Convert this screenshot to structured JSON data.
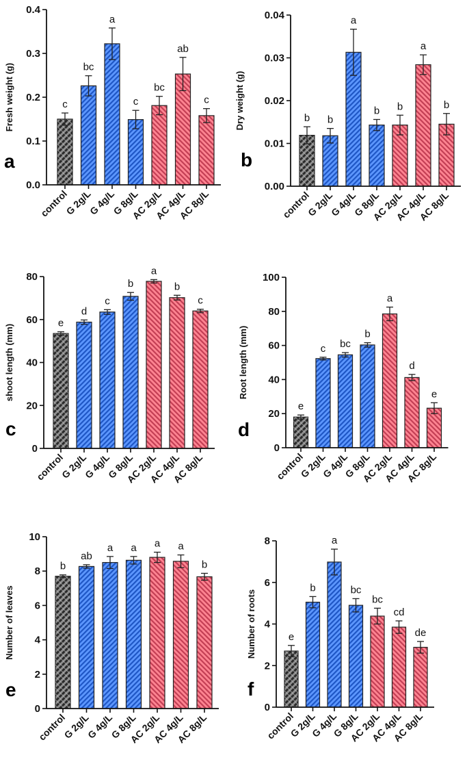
{
  "figure": {
    "categories": [
      "control",
      "G 2g/L",
      "G 4g/L",
      "G 8g/L",
      "AC 2g/L",
      "AC 4g/L",
      "AC 8g/L"
    ],
    "groups": [
      "control",
      "G",
      "G",
      "G",
      "AC",
      "AC",
      "AC"
    ],
    "colors": {
      "control": "#555555",
      "G": "#3c7be8",
      "AC": "#ee5f72",
      "control_stripe": "#1c1c1c",
      "G_stripe": "#1d4fb8",
      "AC_stripe": "#a83246",
      "G_light": "#7fb0ff",
      "AC_light": "#ff9aa5",
      "control_light": "#9a9a9a",
      "axis": "#111111"
    }
  },
  "chart_data": [
    {
      "panel": "a",
      "type": "bar",
      "title": "",
      "xlabel": "",
      "ylabel": "Fresh weight (g)",
      "ylim": [
        0,
        0.4
      ],
      "yticks": [
        0.0,
        0.1,
        0.2,
        0.3,
        0.4
      ],
      "ytick_labels": [
        "0.0",
        "0.1",
        "0.2",
        "0.3",
        "0.4"
      ],
      "categories": [
        "control",
        "G 2g/L",
        "G 4g/L",
        "G 8g/L",
        "AC 2g/L",
        "AC 4g/L",
        "AC 8g/L"
      ],
      "values": [
        0.15,
        0.226,
        0.322,
        0.149,
        0.181,
        0.253,
        0.158
      ],
      "errors": [
        0.014,
        0.023,
        0.036,
        0.021,
        0.021,
        0.038,
        0.016
      ],
      "significance": [
        "c",
        "bc",
        "a",
        "c",
        "bc",
        "ab",
        "c"
      ],
      "grid": false,
      "legend": "none"
    },
    {
      "panel": "b",
      "type": "bar",
      "title": "",
      "xlabel": "",
      "ylabel": "Dry weight (g)",
      "ylim": [
        0,
        0.04
      ],
      "yticks": [
        0.0,
        0.01,
        0.02,
        0.03,
        0.04
      ],
      "ytick_labels": [
        "0.00",
        "0.01",
        "0.02",
        "0.03",
        "0.04"
      ],
      "categories": [
        "control",
        "G 2g/L",
        "G 4g/L",
        "G 8g/L",
        "AC 2g/L",
        "AC 4g/L",
        "AC 8g/L"
      ],
      "values": [
        0.0119,
        0.0118,
        0.0313,
        0.0143,
        0.0143,
        0.0284,
        0.0145
      ],
      "errors": [
        0.002,
        0.0017,
        0.0054,
        0.0013,
        0.0023,
        0.0023,
        0.0025
      ],
      "significance": [
        "b",
        "b",
        "a",
        "b",
        "b",
        "a",
        "b"
      ],
      "grid": false,
      "legend": "none"
    },
    {
      "panel": "c",
      "type": "bar",
      "title": "",
      "xlabel": "",
      "ylabel": "shoot length (mm)",
      "ylim": [
        0,
        80
      ],
      "yticks": [
        0,
        20,
        40,
        60,
        80
      ],
      "ytick_labels": [
        "0",
        "20",
        "40",
        "60",
        "80"
      ],
      "categories": [
        "control",
        "G 2g/L",
        "G 4g/L",
        "G 8g/L",
        "AC 2g/L",
        "AC 4g/L",
        "AC 8g/L"
      ],
      "values": [
        53.5,
        58.8,
        63.5,
        70.8,
        77.8,
        70.2,
        64.0
      ],
      "errors": [
        0.8,
        1.0,
        1.1,
        1.8,
        0.8,
        1.1,
        0.8
      ],
      "significance": [
        "e",
        "d",
        "c",
        "b",
        "a",
        "b",
        "c"
      ],
      "grid": false,
      "legend": "none"
    },
    {
      "panel": "d",
      "type": "bar",
      "title": "",
      "xlabel": "",
      "ylabel": "Root length (mm)",
      "ylim": [
        0,
        100
      ],
      "yticks": [
        0,
        20,
        40,
        60,
        80,
        100
      ],
      "ytick_labels": [
        "0",
        "20",
        "40",
        "60",
        "80",
        "100"
      ],
      "categories": [
        "control",
        "G 2g/L",
        "G 4g/L",
        "G 8g/L",
        "AC 2g/L",
        "AC 4g/L",
        "AC 8g/L"
      ],
      "values": [
        18.0,
        52.3,
        54.5,
        60.3,
        78.5,
        41.2,
        23.2
      ],
      "errors": [
        1.2,
        0.8,
        1.3,
        1.3,
        4.0,
        1.8,
        3.2
      ],
      "significance": [
        "e",
        "c",
        "bc",
        "b",
        "a",
        "d",
        "e"
      ],
      "grid": false,
      "legend": "none"
    },
    {
      "panel": "e",
      "type": "bar",
      "title": "",
      "xlabel": "",
      "ylabel": "Number of leaves",
      "ylim": [
        0,
        10
      ],
      "yticks": [
        0,
        2,
        4,
        6,
        8,
        10
      ],
      "ytick_labels": [
        "0",
        "2",
        "4",
        "6",
        "8",
        "10"
      ],
      "categories": [
        "control",
        "G 2g/L",
        "G 4g/L",
        "G 8g/L",
        "AC 2g/L",
        "AC 4g/L",
        "AC 8g/L"
      ],
      "values": [
        7.7,
        8.27,
        8.5,
        8.63,
        8.8,
        8.57,
        7.67
      ],
      "errors": [
        0.08,
        0.1,
        0.35,
        0.22,
        0.3,
        0.37,
        0.2
      ],
      "significance": [
        "b",
        "ab",
        "a",
        "a",
        "a",
        "a",
        "b"
      ],
      "grid": false,
      "legend": "none"
    },
    {
      "panel": "f",
      "type": "bar",
      "title": "",
      "xlabel": "",
      "ylabel": "Number of roots",
      "ylim": [
        0,
        8
      ],
      "yticks": [
        0,
        2,
        4,
        6,
        8
      ],
      "ytick_labels": [
        "0",
        "2",
        "4",
        "6",
        "8"
      ],
      "categories": [
        "control",
        "G 2g/L",
        "G 4g/L",
        "G 8g/L",
        "AC 2g/L",
        "AC 4g/L",
        "AC 8g/L"
      ],
      "values": [
        2.7,
        5.05,
        6.98,
        4.9,
        4.38,
        3.85,
        2.88
      ],
      "errors": [
        0.27,
        0.27,
        0.62,
        0.32,
        0.38,
        0.3,
        0.28
      ],
      "significance": [
        "e",
        "b",
        "a",
        "bc",
        "bc",
        "cd",
        "de"
      ],
      "grid": false,
      "legend": "none"
    }
  ]
}
